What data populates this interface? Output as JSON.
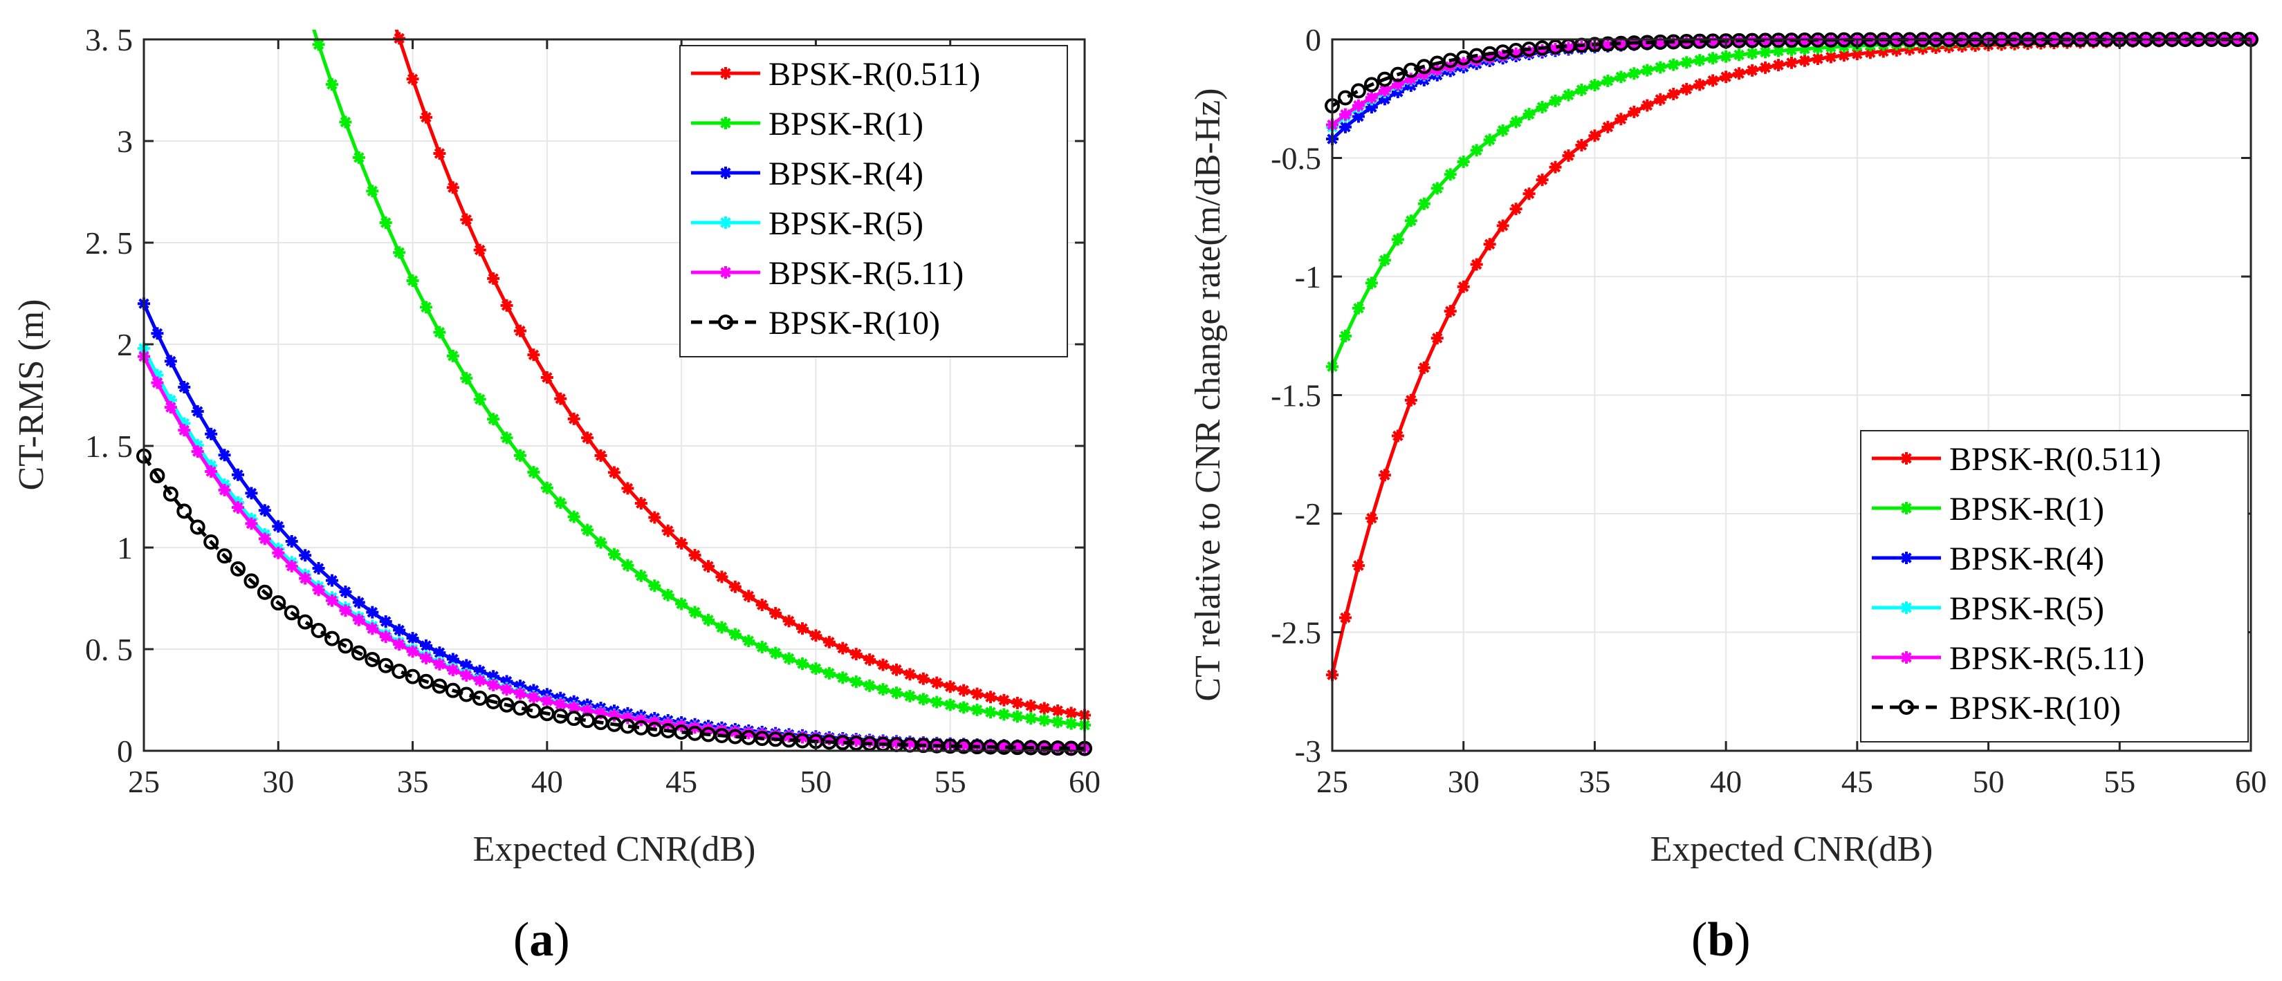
{
  "panels": [
    {
      "id": "a",
      "label": "a",
      "xlabel": "Expected CNR(dB)",
      "ylabel": "CT-RMS (m)",
      "xlim": [
        25,
        60
      ],
      "ylim": [
        0,
        3.5
      ],
      "xticks": [
        25,
        30,
        35,
        40,
        45,
        50,
        55,
        60
      ],
      "yticks": [
        0,
        0.5,
        1,
        1.5,
        2,
        2.5,
        3,
        3.5
      ],
      "ytick_labels": [
        "0",
        "0. 5",
        "1",
        "1. 5",
        "2",
        "2. 5",
        "3",
        "3. 5"
      ],
      "legend_position": "top-right"
    },
    {
      "id": "b",
      "label": "b",
      "xlabel": "Expected CNR(dB)",
      "ylabel": "CT relative to CNR change rate(m/dB-Hz)",
      "xlim": [
        25,
        60
      ],
      "ylim": [
        -3,
        0
      ],
      "xticks": [
        25,
        30,
        35,
        40,
        45,
        50,
        55,
        60
      ],
      "yticks": [
        -3,
        -2.5,
        -2,
        -1.5,
        -1,
        -0.5,
        0
      ],
      "ytick_labels": [
        "-3",
        "-2.5",
        "-2",
        "-1.5",
        "-1",
        "-0.5",
        "0"
      ],
      "legend_position": "bottom-right"
    }
  ],
  "chart_data": [
    {
      "type": "line",
      "title": "",
      "xlabel": "Expected CNR(dB)",
      "ylabel": "CT-RMS (m)",
      "xlim": [
        25,
        60
      ],
      "ylim": [
        0,
        3.5
      ],
      "x_start": 25,
      "x_end": 60,
      "x_step": 0.5,
      "model": "y = a * 10^(-(x - 25) / d), clipped to ylim",
      "series": [
        {
          "name": "BPSK-R(0.511)",
          "color": "#ff0000",
          "marker": "asterisk",
          "a": 10.7,
          "d": 19.6
        },
        {
          "name": "BPSK-R(1)",
          "color": "#00ee00",
          "marker": "asterisk",
          "a": 7.4,
          "d": 19.8
        },
        {
          "name": "BPSK-R(4)",
          "color": "#0000ff",
          "marker": "asterisk",
          "a": 2.2,
          "d": 16.7
        },
        {
          "name": "BPSK-R(5)",
          "color": "#00ffff",
          "marker": "asterisk",
          "a": 1.98,
          "d": 16.7
        },
        {
          "name": "BPSK-R(5.11)",
          "color": "#ff00ff",
          "marker": "asterisk",
          "a": 1.94,
          "d": 16.7
        },
        {
          "name": "BPSK-R(10)",
          "color": "#000000",
          "marker": "circle",
          "dashed": true,
          "a": 1.45,
          "d": 16.7
        }
      ]
    },
    {
      "type": "line",
      "title": "",
      "xlabel": "Expected CNR(dB)",
      "ylabel": "CT relative to CNR change rate(m/dB-Hz)",
      "xlim": [
        25,
        60
      ],
      "ylim": [
        -3,
        0
      ],
      "x_start": 25,
      "x_end": 60,
      "x_step": 0.5,
      "model": "y = -a * 10^(-(x - 25) / d)",
      "series": [
        {
          "name": "BPSK-R(0.511)",
          "color": "#ff0000",
          "marker": "asterisk",
          "a": 2.68,
          "d": 12.2
        },
        {
          "name": "BPSK-R(1)",
          "color": "#00ee00",
          "marker": "asterisk",
          "a": 1.38,
          "d": 11.7
        },
        {
          "name": "BPSK-R(4)",
          "color": "#0000ff",
          "marker": "asterisk",
          "a": 0.42,
          "d": 9.0
        },
        {
          "name": "BPSK-R(5)",
          "color": "#00ffff",
          "marker": "asterisk",
          "a": 0.37,
          "d": 9.0
        },
        {
          "name": "BPSK-R(5.11)",
          "color": "#ff00ff",
          "marker": "asterisk",
          "a": 0.36,
          "d": 9.0
        },
        {
          "name": "BPSK-R(10)",
          "color": "#000000",
          "marker": "circle",
          "dashed": true,
          "a": 0.28,
          "d": 9.0
        }
      ]
    }
  ]
}
